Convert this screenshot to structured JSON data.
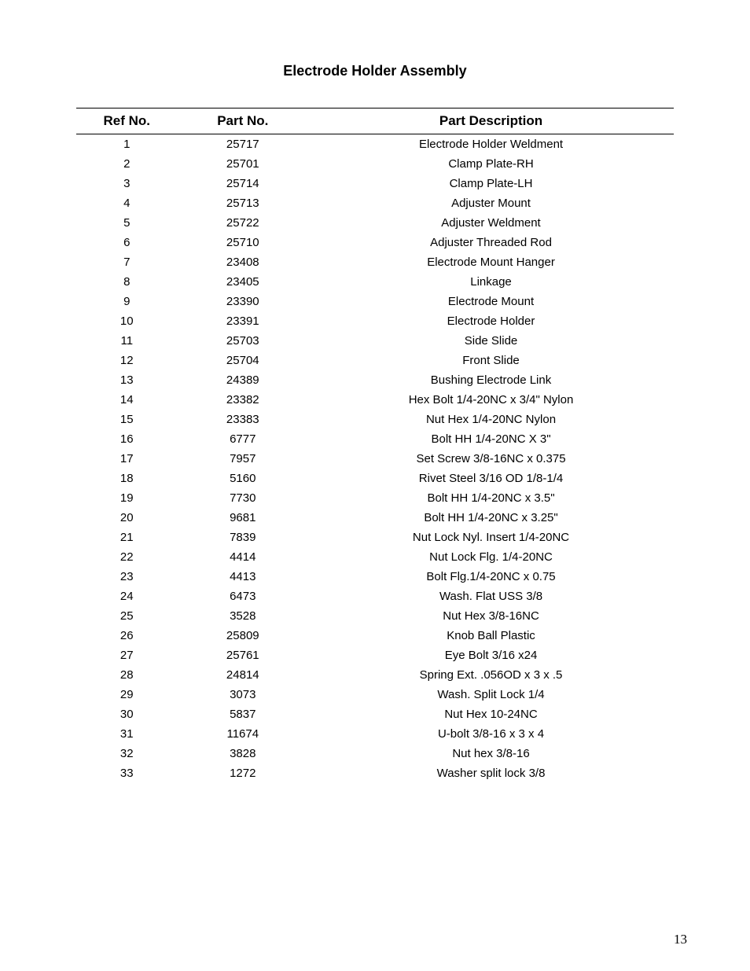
{
  "title": "Electrode Holder Assembly",
  "page_number": "13",
  "text_color": "#000000",
  "background_color": "#ffffff",
  "border_color": "#000000",
  "table": {
    "columns": [
      "Ref No.",
      "Part No.",
      "Part Description"
    ],
    "rows": [
      [
        "1",
        "25717",
        "Electrode Holder Weldment"
      ],
      [
        "2",
        "25701",
        "Clamp Plate-RH"
      ],
      [
        "3",
        "25714",
        "Clamp Plate-LH"
      ],
      [
        "4",
        "25713",
        "Adjuster Mount"
      ],
      [
        "5",
        "25722",
        "Adjuster Weldment"
      ],
      [
        "6",
        "25710",
        "Adjuster Threaded Rod"
      ],
      [
        "7",
        "23408",
        "Electrode Mount Hanger"
      ],
      [
        "8",
        "23405",
        "Linkage"
      ],
      [
        "9",
        "23390",
        "Electrode Mount"
      ],
      [
        "10",
        "23391",
        "Electrode Holder"
      ],
      [
        "11",
        "25703",
        "Side Slide"
      ],
      [
        "12",
        "25704",
        "Front Slide"
      ],
      [
        "13",
        "24389",
        "Bushing Electrode Link"
      ],
      [
        "14",
        "23382",
        "Hex Bolt 1/4-20NC x 3/4\" Nylon"
      ],
      [
        "15",
        "23383",
        "Nut Hex 1/4-20NC Nylon"
      ],
      [
        "16",
        "6777",
        "Bolt HH 1/4-20NC X 3\""
      ],
      [
        "17",
        "7957",
        "Set Screw 3/8-16NC x 0.375"
      ],
      [
        "18",
        "5160",
        "Rivet Steel 3/16 OD 1/8-1/4"
      ],
      [
        "19",
        "7730",
        "Bolt HH 1/4-20NC x 3.5\""
      ],
      [
        "20",
        "9681",
        "Bolt HH 1/4-20NC x 3.25\""
      ],
      [
        "21",
        "7839",
        "Nut Lock Nyl. Insert 1/4-20NC"
      ],
      [
        "22",
        "4414",
        "Nut Lock Flg. 1/4-20NC"
      ],
      [
        "23",
        "4413",
        "Bolt Flg.1/4-20NC x 0.75"
      ],
      [
        "24",
        "6473",
        "Wash. Flat USS 3/8"
      ],
      [
        "25",
        "3528",
        "Nut Hex 3/8-16NC"
      ],
      [
        "26",
        "25809",
        "Knob Ball Plastic"
      ],
      [
        "27",
        "25761",
        "Eye Bolt 3/16 x24"
      ],
      [
        "28",
        "24814",
        "Spring Ext. .056OD x 3 x .5"
      ],
      [
        "29",
        "3073",
        "Wash. Split Lock 1/4"
      ],
      [
        "30",
        "5837",
        "Nut Hex 10-24NC"
      ],
      [
        "31",
        "11674",
        "U-bolt 3/8-16 x 3 x 4"
      ],
      [
        "32",
        "3828",
        "Nut hex 3/8-16"
      ],
      [
        "33",
        "1272",
        "Washer split lock 3/8"
      ]
    ]
  }
}
